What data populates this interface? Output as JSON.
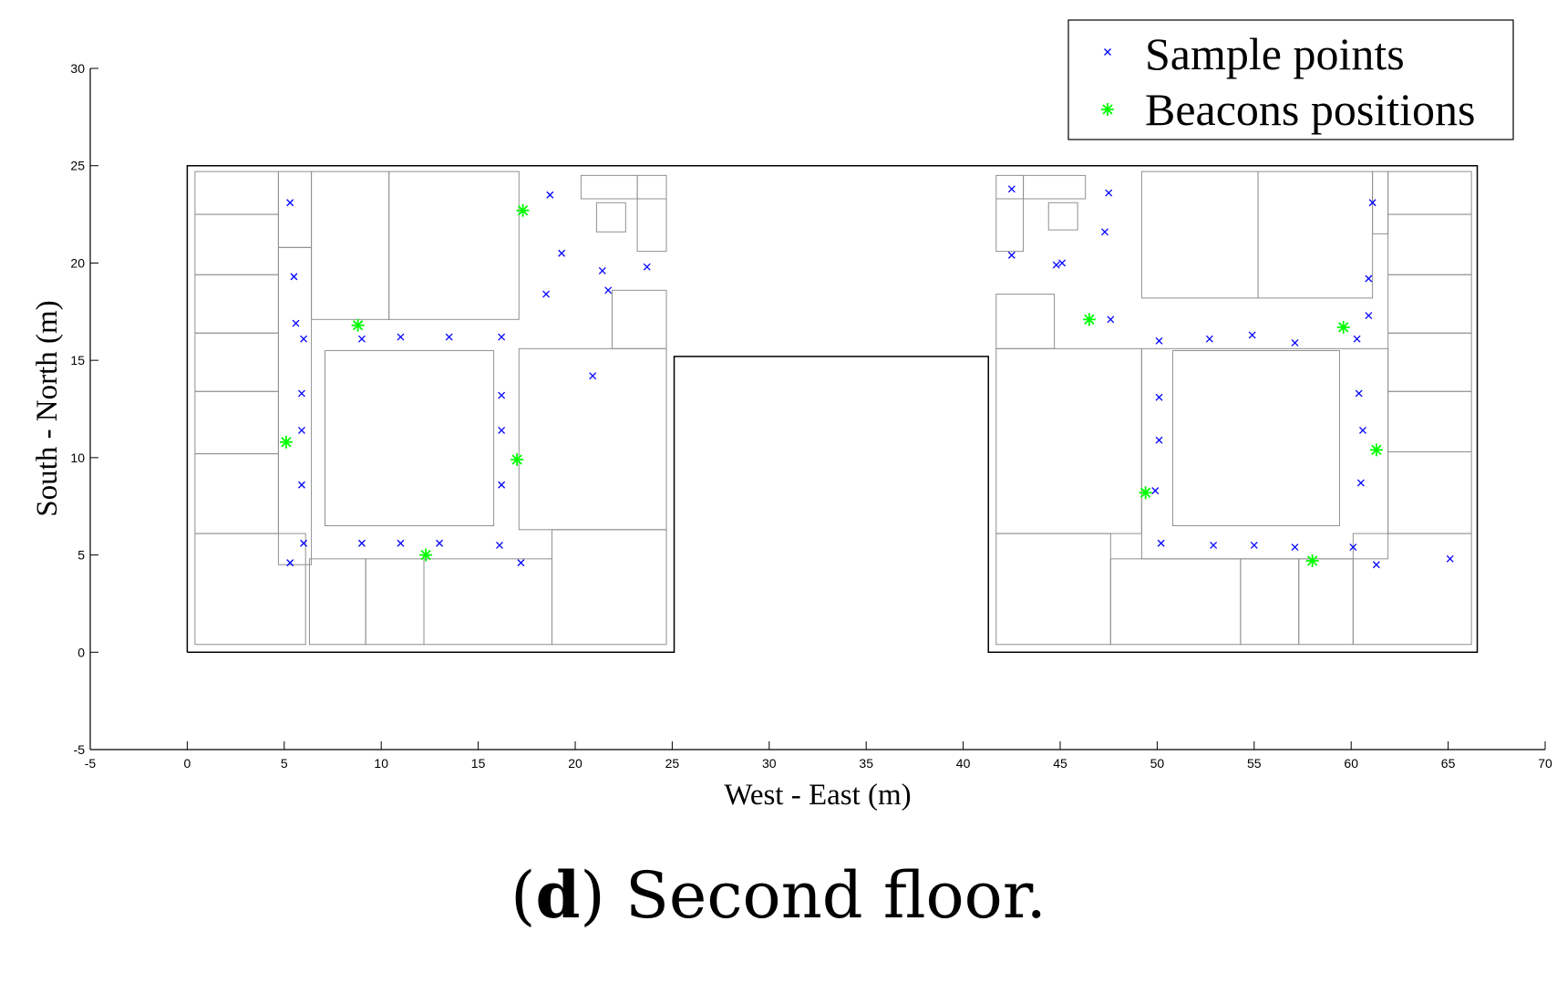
{
  "caption": {
    "label": "d",
    "text": "Second floor."
  },
  "chart_data": {
    "type": "scatter",
    "xlabel": "West - East (m)",
    "ylabel": "South - North (m)",
    "xlim": [
      -5,
      70
    ],
    "ylim": [
      -5,
      30
    ],
    "xticks": [
      -5,
      0,
      5,
      10,
      15,
      20,
      25,
      30,
      35,
      40,
      45,
      50,
      55,
      60,
      65,
      70
    ],
    "yticks": [
      -5,
      0,
      5,
      10,
      15,
      20,
      25,
      30
    ],
    "grid": false,
    "legend_position": "top-right",
    "series": [
      {
        "name": "Sample points",
        "marker": "x",
        "color": "#0000ff",
        "points": [
          [
            5.3,
            23.1
          ],
          [
            5.5,
            19.3
          ],
          [
            5.6,
            16.9
          ],
          [
            6.0,
            16.1
          ],
          [
            5.9,
            13.3
          ],
          [
            5.9,
            11.4
          ],
          [
            5.9,
            8.6
          ],
          [
            6.0,
            5.6
          ],
          [
            5.3,
            4.6
          ],
          [
            9.0,
            16.1
          ],
          [
            11.0,
            16.2
          ],
          [
            13.5,
            16.2
          ],
          [
            16.2,
            16.2
          ],
          [
            16.2,
            13.2
          ],
          [
            16.2,
            11.4
          ],
          [
            16.2,
            8.6
          ],
          [
            9.0,
            5.6
          ],
          [
            11.0,
            5.6
          ],
          [
            13.0,
            5.6
          ],
          [
            16.1,
            5.5
          ],
          [
            17.2,
            4.6
          ],
          [
            18.7,
            23.5
          ],
          [
            19.3,
            20.5
          ],
          [
            18.5,
            18.4
          ],
          [
            21.4,
            19.6
          ],
          [
            21.7,
            18.6
          ],
          [
            23.7,
            19.8
          ],
          [
            20.9,
            14.2
          ],
          [
            42.5,
            23.8
          ],
          [
            42.5,
            20.4
          ],
          [
            44.8,
            19.9
          ],
          [
            45.1,
            20.0
          ],
          [
            47.5,
            23.6
          ],
          [
            47.3,
            21.6
          ],
          [
            47.6,
            17.1
          ],
          [
            50.1,
            16.0
          ],
          [
            52.7,
            16.1
          ],
          [
            54.9,
            16.3
          ],
          [
            57.1,
            15.9
          ],
          [
            60.3,
            16.1
          ],
          [
            50.1,
            13.1
          ],
          [
            50.1,
            10.9
          ],
          [
            49.9,
            8.3
          ],
          [
            50.2,
            5.6
          ],
          [
            52.9,
            5.5
          ],
          [
            55.0,
            5.5
          ],
          [
            57.1,
            5.4
          ],
          [
            60.1,
            5.4
          ],
          [
            61.1,
            23.1
          ],
          [
            60.9,
            19.2
          ],
          [
            60.9,
            17.3
          ],
          [
            60.4,
            13.3
          ],
          [
            60.6,
            11.4
          ],
          [
            60.5,
            8.7
          ],
          [
            61.3,
            4.5
          ],
          [
            65.1,
            4.8
          ]
        ]
      },
      {
        "name": "Beacons positions",
        "marker": "*",
        "color": "#00ff00",
        "points": [
          [
            17.3,
            22.7
          ],
          [
            8.8,
            16.8
          ],
          [
            5.1,
            10.8
          ],
          [
            17.0,
            9.9
          ],
          [
            12.3,
            5.0
          ],
          [
            46.5,
            17.1
          ],
          [
            59.6,
            16.7
          ],
          [
            61.3,
            10.4
          ],
          [
            49.4,
            8.2
          ],
          [
            58.0,
            4.7
          ]
        ]
      }
    ],
    "floor_plan": {
      "outer_walls": [
        [
          [
            0,
            0
          ],
          [
            0,
            25
          ],
          [
            66.5,
            25
          ],
          [
            66.5,
            0
          ],
          [
            41.3,
            0
          ],
          [
            41.3,
            15.2
          ],
          [
            25.1,
            15.2
          ],
          [
            25.1,
            0
          ],
          [
            0,
            0
          ]
        ]
      ],
      "rooms": [
        [
          0.4,
          22.5,
          4.7,
          24.7
        ],
        [
          0.4,
          19.4,
          4.7,
          22.5
        ],
        [
          0.4,
          16.4,
          4.7,
          19.4
        ],
        [
          0.4,
          13.4,
          4.7,
          16.4
        ],
        [
          0.4,
          10.2,
          4.7,
          13.4
        ],
        [
          0.4,
          6.1,
          4.7,
          10.2
        ],
        [
          0.4,
          0.4,
          6.1,
          6.1
        ],
        [
          4.7,
          20.8,
          6.4,
          24.7
        ],
        [
          4.7,
          4.5,
          6.4,
          20.8
        ],
        [
          6.4,
          17.1,
          10.4,
          24.7
        ],
        [
          10.4,
          17.1,
          17.1,
          24.7
        ],
        [
          7.1,
          6.5,
          15.8,
          15.5
        ],
        [
          6.3,
          0.4,
          9.2,
          4.8
        ],
        [
          9.2,
          0.4,
          12.2,
          4.8
        ],
        [
          12.2,
          0.4,
          18.8,
          4.8
        ],
        [
          18.8,
          0.4,
          24.7,
          6.3
        ],
        [
          17.1,
          6.3,
          24.7,
          15.6
        ],
        [
          21.9,
          15.6,
          24.7,
          18.6
        ],
        [
          20.3,
          23.3,
          23.2,
          24.5
        ],
        [
          23.2,
          23.3,
          24.7,
          24.5
        ],
        [
          23.2,
          20.6,
          24.7,
          23.3
        ],
        [
          21.1,
          21.6,
          22.6,
          23.1
        ],
        [
          41.7,
          20.6,
          43.1,
          23.3
        ],
        [
          41.7,
          23.3,
          43.1,
          24.5
        ],
        [
          43.1,
          23.3,
          46.3,
          24.5
        ],
        [
          44.4,
          21.7,
          45.9,
          23.1
        ],
        [
          41.7,
          15.6,
          44.7,
          18.4
        ],
        [
          41.7,
          6.1,
          49.2,
          15.6
        ],
        [
          41.7,
          0.4,
          47.6,
          6.1
        ],
        [
          47.6,
          0.4,
          54.3,
          4.8
        ],
        [
          54.3,
          0.4,
          57.3,
          4.8
        ],
        [
          57.3,
          0.4,
          60.1,
          4.8
        ],
        [
          60.1,
          0.4,
          66.2,
          6.1
        ],
        [
          49.2,
          4.8,
          61.9,
          15.6
        ],
        [
          49.2,
          18.2,
          55.2,
          24.7
        ],
        [
          55.2,
          18.2,
          61.1,
          24.7
        ],
        [
          50.8,
          6.5,
          59.4,
          15.5
        ],
        [
          61.1,
          21.5,
          61.9,
          24.7
        ],
        [
          61.9,
          22.5,
          66.2,
          24.7
        ],
        [
          61.9,
          19.4,
          66.2,
          22.5
        ],
        [
          61.9,
          16.4,
          66.2,
          19.4
        ],
        [
          61.9,
          13.4,
          66.2,
          16.4
        ],
        [
          61.9,
          10.3,
          66.2,
          13.4
        ],
        [
          61.9,
          6.1,
          66.2,
          10.3
        ]
      ]
    }
  }
}
